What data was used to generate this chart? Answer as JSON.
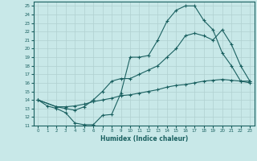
{
  "title": "",
  "xlabel": "Humidex (Indice chaleur)",
  "ylabel": "",
  "background_color": "#c8e8e8",
  "grid_color": "#b0d0d0",
  "line_color": "#1a6060",
  "xlim": [
    -0.5,
    23.5
  ],
  "ylim": [
    11,
    25.5
  ],
  "xticks": [
    0,
    1,
    2,
    3,
    4,
    5,
    6,
    7,
    8,
    9,
    10,
    11,
    12,
    13,
    14,
    15,
    16,
    17,
    18,
    19,
    20,
    21,
    22,
    23
  ],
  "yticks": [
    11,
    12,
    13,
    14,
    15,
    16,
    17,
    18,
    19,
    20,
    21,
    22,
    23,
    24,
    25
  ],
  "line1_x": [
    0,
    1,
    2,
    3,
    4,
    5,
    6,
    7,
    8,
    9,
    10,
    11,
    12,
    13,
    14,
    15,
    16,
    17,
    18,
    19,
    20,
    21,
    22,
    23
  ],
  "line1_y": [
    14.0,
    13.3,
    13.0,
    12.5,
    11.3,
    11.1,
    11.1,
    12.2,
    12.3,
    14.8,
    19.0,
    19.0,
    19.2,
    21.0,
    23.2,
    24.5,
    25.0,
    25.0,
    23.3,
    22.2,
    19.5,
    18.0,
    16.2,
    16.0
  ],
  "line2_x": [
    0,
    2,
    3,
    4,
    5,
    6,
    7,
    8,
    9,
    10,
    11,
    12,
    13,
    14,
    15,
    16,
    17,
    18,
    19,
    20,
    21,
    22,
    23
  ],
  "line2_y": [
    14.0,
    13.2,
    13.0,
    12.8,
    13.2,
    14.0,
    15.0,
    16.2,
    16.5,
    16.5,
    17.0,
    17.5,
    18.0,
    19.0,
    20.0,
    21.5,
    21.8,
    21.5,
    21.0,
    22.2,
    20.5,
    18.0,
    16.2
  ],
  "line3_x": [
    0,
    2,
    3,
    4,
    5,
    6,
    7,
    8,
    9,
    10,
    11,
    12,
    13,
    14,
    15,
    16,
    17,
    18,
    19,
    20,
    21,
    22,
    23
  ],
  "line3_y": [
    14.0,
    13.2,
    13.2,
    13.3,
    13.5,
    13.8,
    14.0,
    14.2,
    14.5,
    14.6,
    14.8,
    15.0,
    15.2,
    15.5,
    15.7,
    15.8,
    16.0,
    16.2,
    16.3,
    16.4,
    16.3,
    16.2,
    16.2
  ]
}
